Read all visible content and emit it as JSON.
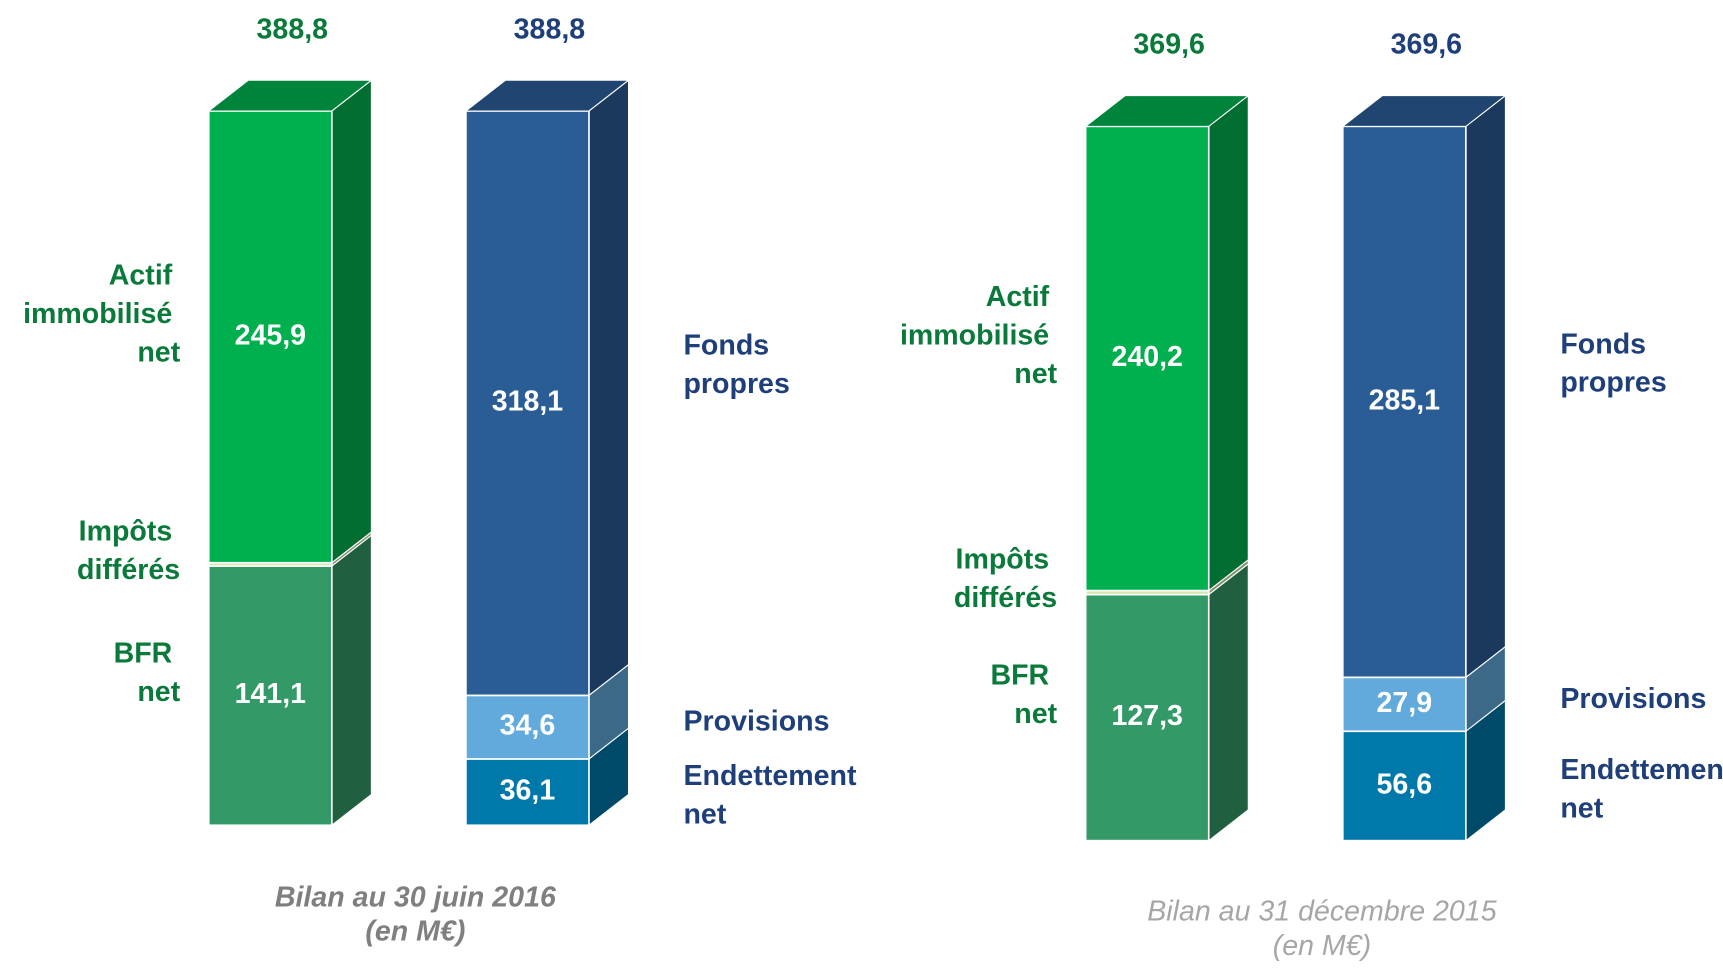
{
  "chart_data": [
    {
      "type": "stacked_bar3d",
      "title": "Bilan au 30 juin 2016",
      "subtitle": "(en M€)",
      "columns": [
        {
          "total": 388.8,
          "total_label": "388,8",
          "color": "#0a7a3a",
          "segments": [
            {
              "name": "BFR net",
              "value": 141.1,
              "value_label": "141,1",
              "color": "#339966"
            },
            {
              "name": "Impôts différés",
              "value": 1.8,
              "value_label": "1,8",
              "color": "#d4e8b0"
            },
            {
              "name": "Actif immobilisé net",
              "value": 245.9,
              "value_label": "245,9",
              "color": "#00b04f"
            }
          ]
        },
        {
          "total": 388.8,
          "total_label": "388,8",
          "color": "#1f3f7a",
          "segments": [
            {
              "name": "Endettement net",
              "value": 36.1,
              "value_label": "36,1",
              "color": "#0078aa"
            },
            {
              "name": "Provisions",
              "value": 34.6,
              "value_label": "34,6",
              "color": "#62aadb"
            },
            {
              "name": "Fonds propres",
              "value": 318.1,
              "value_label": "318,1",
              "color": "#2a5c96"
            }
          ]
        }
      ]
    },
    {
      "type": "stacked_bar3d",
      "title": "Bilan au 31 décembre 2015",
      "subtitle": "(en M€)",
      "columns": [
        {
          "total": 369.6,
          "total_label": "369,6",
          "color": "#0a7a3a",
          "segments": [
            {
              "name": "BFR net",
              "value": 127.3,
              "value_label": "127,3",
              "color": "#339966"
            },
            {
              "name": "Impôts différés",
              "value": 2.1,
              "value_label": "2,1",
              "color": "#d4e8b0"
            },
            {
              "name": "Actif immobilisé net",
              "value": 240.2,
              "value_label": "240,2",
              "color": "#00b04f"
            }
          ]
        },
        {
          "total": 369.6,
          "total_label": "369,6",
          "color": "#1f3f7a",
          "segments": [
            {
              "name": "Endettement net",
              "value": 56.6,
              "value_label": "56,6",
              "color": "#0078aa"
            },
            {
              "name": "Provisions",
              "value": 27.9,
              "value_label": "27,9",
              "color": "#62aadb"
            },
            {
              "name": "Fonds propres",
              "value": 285.1,
              "value_label": "285,1",
              "color": "#2a5c96"
            }
          ]
        }
      ]
    }
  ]
}
